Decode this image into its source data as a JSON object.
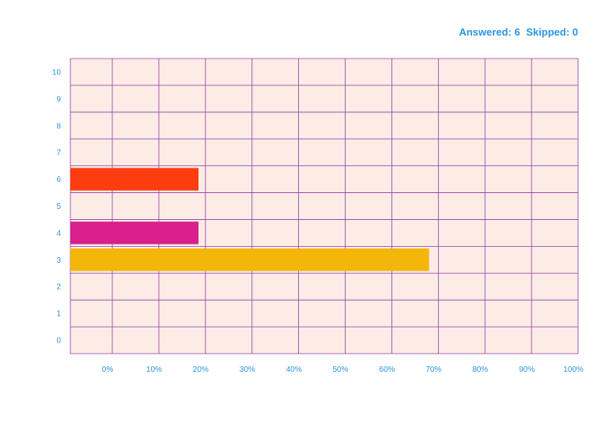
{
  "summary": {
    "answered_label": "Answered: 6",
    "skipped_label": "Skipped: 0"
  },
  "colors": {
    "background": "#fdebe5",
    "grid": "#8a3fa6",
    "label": "#2b95e0"
  },
  "chart_data": {
    "type": "bar",
    "orientation": "horizontal",
    "categories": [
      "0",
      "1",
      "2",
      "3",
      "4",
      "5",
      "6",
      "7",
      "8",
      "9",
      "10"
    ],
    "values": [
      0,
      0,
      0,
      68,
      18.5,
      0,
      18.5,
      0,
      0,
      0,
      0
    ],
    "bar_colors": {
      "3": "#f5b60c",
      "4": "#d81f8c",
      "6": "#fc3d10"
    },
    "x_ticks": [
      "0%",
      "10%",
      "20%",
      "30%",
      "40%",
      "50%",
      "60%",
      "70%",
      "80%",
      "90%",
      "100%"
    ],
    "xlim": [
      -9,
      100
    ],
    "grid": true,
    "title": "",
    "xlabel": "",
    "ylabel": ""
  }
}
